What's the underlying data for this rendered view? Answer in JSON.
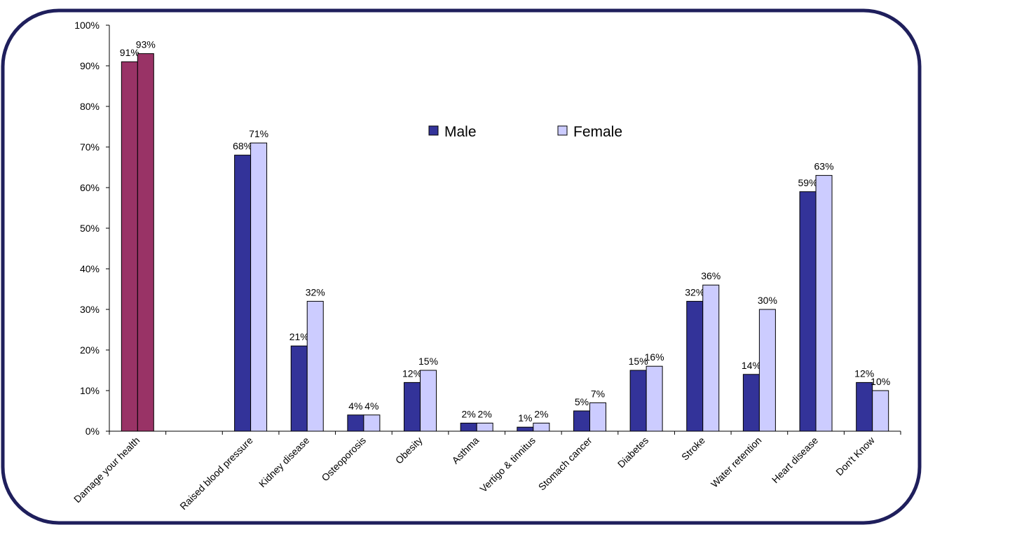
{
  "chart_data": {
    "type": "bar",
    "categories": [
      "Damage your health",
      "",
      "Raised blood pressure",
      "Kidney disease",
      "Osteoporosis",
      "Obesity",
      "Asthma",
      "Vertigo & tinnitus",
      "Stomach cancer",
      "Diabetes",
      "Stroke",
      "Water retention",
      "Heart disease",
      "Don't Know"
    ],
    "series": [
      {
        "name": "Male",
        "values": [
          91,
          null,
          68,
          21,
          4,
          12,
          2,
          1,
          5,
          15,
          32,
          14,
          59,
          12
        ]
      },
      {
        "name": "Female",
        "values": [
          93,
          null,
          71,
          32,
          4,
          15,
          2,
          2,
          7,
          16,
          36,
          30,
          63,
          10
        ]
      }
    ],
    "highlight_category_index": 0,
    "y_ticks": [
      "0%",
      "10%",
      "20%",
      "30%",
      "40%",
      "50%",
      "60%",
      "70%",
      "80%",
      "90%",
      "100%"
    ],
    "ylim": [
      0,
      100
    ],
    "value_suffix": "%",
    "legend_position": "top-center",
    "grid": false,
    "colors": {
      "male": "#333399",
      "female": "#ccccff",
      "highlight": "#993366",
      "bar_stroke": "#000000",
      "frame": "#1f1f5c",
      "axis": "#000000",
      "text": "#000000"
    }
  }
}
